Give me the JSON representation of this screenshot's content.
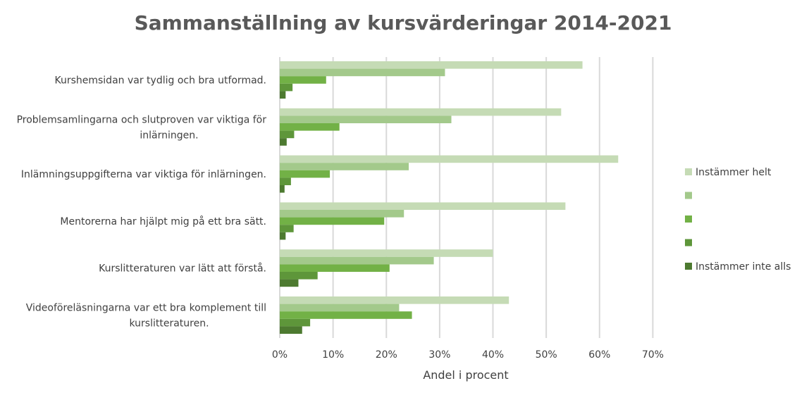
{
  "chart_data": {
    "type": "bar",
    "orientation": "horizontal",
    "title": "Sammanställning av kursvärderingar 2014-2021",
    "xlabel": "Andel i procent",
    "ylabel": "",
    "xlim": [
      0,
      70
    ],
    "x_ticks": [
      "0%",
      "10%",
      "20%",
      "30%",
      "40%",
      "50%",
      "60%",
      "70%"
    ],
    "x_tick_values": [
      0,
      10,
      20,
      30,
      40,
      50,
      60,
      70
    ],
    "grid": true,
    "legend_position": "right",
    "categories": [
      [
        "Kurshemsidan var tydlig och bra utformad."
      ],
      [
        "Problemsamlingarna och slutproven var viktiga för",
        "inlärningen."
      ],
      [
        "Inlämningsuppgifterna var viktiga för inlärningen."
      ],
      [
        "Mentorerna har hjälpt mig på ett bra sätt."
      ],
      [
        "Kurslitteraturen var lätt att förstå."
      ],
      [
        "Videoföreläsningarna var ett bra komplement till",
        "kurslitteraturen."
      ]
    ],
    "series": [
      {
        "name": "Instämmer helt",
        "color": "#c5dbb5",
        "values": [
          56.8,
          52.8,
          63.5,
          53.6,
          40.0,
          43.0
        ]
      },
      {
        "name": "",
        "color": "#a3c98b",
        "values": [
          31.0,
          32.2,
          24.2,
          23.3,
          28.9,
          22.4
        ]
      },
      {
        "name": "",
        "color": "#72b146",
        "values": [
          8.7,
          11.2,
          9.4,
          19.6,
          20.6,
          24.8
        ]
      },
      {
        "name": "",
        "color": "#5e963a",
        "values": [
          2.4,
          2.7,
          2.1,
          2.6,
          7.1,
          5.7
        ]
      },
      {
        "name": "Instämmer inte alls",
        "color": "#4d7a30",
        "values": [
          1.1,
          1.3,
          0.9,
          1.1,
          3.5,
          4.2
        ]
      }
    ]
  }
}
